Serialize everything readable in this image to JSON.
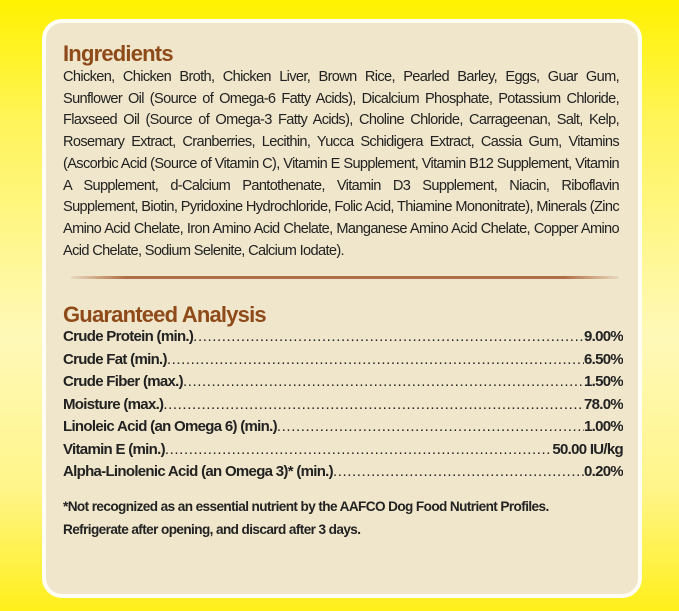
{
  "ingredients": {
    "title": "Ingredients",
    "text": "Chicken, Chicken Broth, Chicken Liver, Brown Rice, Pearled Barley, Eggs, Guar Gum, Sunflower Oil (Source of Omega-6 Fatty Acids), Dicalcium Phosphate, Potassium Chloride, Flaxseed Oil (Source of Omega-3 Fatty Acids), Choline Chloride, Carrageenan, Salt, Kelp, Rosemary Extract, Cranberries, Lecithin, Yucca Schidigera Extract, Cassia Gum, Vitamins (Ascorbic Acid (Source of Vitamin C), Vitamin E Supplement, Vitamin B12 Supplement, Vitamin A Supplement, d-Calcium Pantothenate, Vitamin D3 Supplement, Niacin, Riboflavin Supplement, Biotin, Pyridoxine Hydrochloride, Folic Acid, Thiamine Mononitrate), Minerals (Zinc Amino Acid Chelate, Iron Amino Acid Chelate, Manganese Amino Acid Chelate, Copper Amino Acid Chelate, Sodium Selenite, Calcium Iodate)."
  },
  "analysis": {
    "title": "Guaranteed Analysis",
    "rows": [
      {
        "label": "Crude Protein (min.)",
        "value": "9.00%"
      },
      {
        "label": "Crude Fat (min.)",
        "value": "6.50%"
      },
      {
        "label": "Crude Fiber (max.)",
        "value": "1.50%"
      },
      {
        "label": "Moisture (max.)",
        "value": "78.0%"
      },
      {
        "label": "Linoleic Acid (an Omega 6) (min.)",
        "value": "1.00%"
      },
      {
        "label": "Vitamin E (min.)",
        "value": "50.00 IU/kg"
      },
      {
        "label": "Alpha-Linolenic Acid (an Omega 3)* (min.)",
        "value": "0.20%"
      }
    ],
    "footnote": "*Not recognized as an essential nutrient by the AAFCO Dog Food Nutrient Profiles.",
    "storage": "Refrigerate after opening, and discard after 3 days."
  },
  "colors": {
    "heading": "#8e4a18",
    "panel": "#efe6cb",
    "background": "#fff200"
  }
}
